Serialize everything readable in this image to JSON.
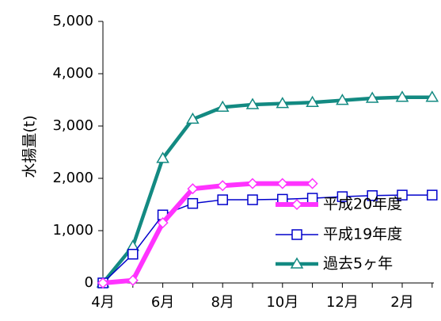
{
  "chart_data": {
    "type": "line",
    "title": "",
    "xlabel": "",
    "ylabel": "水揚量(t)",
    "ylim": [
      0,
      5000
    ],
    "yticks": [
      "0",
      "1,000",
      "2,000",
      "3,000",
      "4,000",
      "5,000"
    ],
    "x_index": [
      0,
      1,
      2,
      3,
      4,
      5,
      6,
      7,
      8,
      9,
      10,
      11
    ],
    "xtick_labels": [
      {
        "i": 0,
        "label": "4月"
      },
      {
        "i": 2,
        "label": "6月"
      },
      {
        "i": 4,
        "label": "8月"
      },
      {
        "i": 6,
        "label": "10月"
      },
      {
        "i": 8,
        "label": "12月"
      },
      {
        "i": 10,
        "label": "2月"
      }
    ],
    "grid": false,
    "legend_position": "bottom-right",
    "series": [
      {
        "name": "平成20年度",
        "color": "#ff33ff",
        "marker": "diamond",
        "values": [
          0,
          50,
          1150,
          1800,
          1860,
          1900,
          1900,
          1900
        ]
      },
      {
        "name": "平成19年度",
        "color": "#0000cc",
        "marker": "square",
        "values": [
          0,
          550,
          1300,
          1520,
          1590,
          1590,
          1600,
          1620,
          1650,
          1670,
          1680,
          1680
        ]
      },
      {
        "name": "過去5ヶ年",
        "color": "#138a82",
        "marker": "triangle",
        "values": [
          0,
          700,
          2380,
          3130,
          3360,
          3410,
          3430,
          3450,
          3490,
          3530,
          3550,
          3550
        ]
      }
    ]
  }
}
